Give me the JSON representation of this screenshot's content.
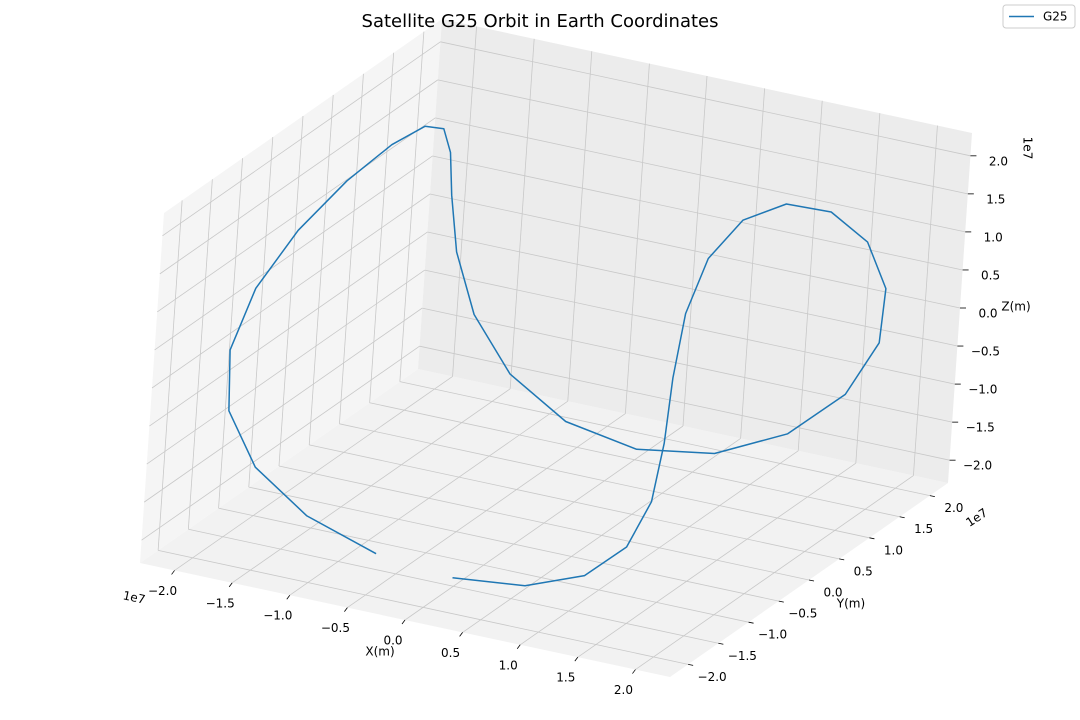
{
  "chart_data": {
    "type": "line3d",
    "title": "Satellite G25 Orbit in Earth Coordinates",
    "xlabel": "X(m)",
    "ylabel": "Y(m)",
    "zlabel": "Z(m)",
    "x_offset_label": "1e7",
    "y_offset_label": "1e7",
    "z_offset_label": "1e7",
    "legend_loc": "upper right",
    "grid": true,
    "xlim": [
      -2.3,
      2.3
    ],
    "ylim": [
      -2.3,
      2.3
    ],
    "zlim": [
      -2.3,
      2.3
    ],
    "xticks": [
      {
        "value": -2,
        "label": "−2.0"
      },
      {
        "value": -1.5,
        "label": "−1.5"
      },
      {
        "value": -1,
        "label": "−1.0"
      },
      {
        "value": -0.5,
        "label": "−0.5"
      },
      {
        "value": 0,
        "label": "0.0"
      },
      {
        "value": 0.5,
        "label": "0.5"
      },
      {
        "value": 1,
        "label": "1.0"
      },
      {
        "value": 1.5,
        "label": "1.5"
      },
      {
        "value": 2,
        "label": "2.0"
      }
    ],
    "yticks": [
      {
        "value": -2,
        "label": "−2.0"
      },
      {
        "value": -1.5,
        "label": "−1.5"
      },
      {
        "value": -1,
        "label": "−1.0"
      },
      {
        "value": -0.5,
        "label": "−0.5"
      },
      {
        "value": 0,
        "label": "0.0"
      },
      {
        "value": 0.5,
        "label": "0.5"
      },
      {
        "value": 1,
        "label": "1.0"
      },
      {
        "value": 1.5,
        "label": "1.5"
      },
      {
        "value": 2,
        "label": "2.0"
      }
    ],
    "zticks": [
      {
        "value": -2,
        "label": "−2.0"
      },
      {
        "value": -1.5,
        "label": "−1.5"
      },
      {
        "value": -1,
        "label": "−1.0"
      },
      {
        "value": -0.5,
        "label": "−0.5"
      },
      {
        "value": 0,
        "label": "0.0"
      },
      {
        "value": 0.5,
        "label": "0.5"
      },
      {
        "value": 1,
        "label": "1.0"
      },
      {
        "value": 1.5,
        "label": "1.5"
      },
      {
        "value": 2,
        "label": "2.0"
      }
    ],
    "series": [
      {
        "name": "G25",
        "color": "#1f77b4",
        "x": [
          0,
          0.646,
          1.205,
          1.611,
          1.834,
          1.884,
          1.81,
          1.681,
          1.568,
          1.524,
          1.568,
          1.681,
          1.81,
          1.884,
          1.834,
          1.611,
          1.205,
          0.646,
          0,
          -0.646,
          -1.205,
          -1.611,
          -1.834,
          -1.884,
          -1.81,
          -1.681,
          -1.568,
          -1.524,
          -1.568,
          -1.681,
          -1.81,
          -1.884,
          -1.834,
          -1.611,
          -1.205,
          -0.646
        ],
        "y": [
          -1.524,
          -1.568,
          -1.681,
          -1.81,
          -1.884,
          -1.834,
          -1.611,
          -1.205,
          -0.646,
          0,
          0.646,
          1.205,
          1.611,
          1.834,
          1.884,
          1.81,
          1.681,
          1.568,
          1.524,
          1.568,
          1.681,
          1.81,
          1.884,
          1.834,
          1.611,
          1.205,
          0.646,
          0,
          -0.646,
          -1.205,
          -1.611,
          -1.834,
          -1.884,
          -1.81,
          -1.681,
          -1.568
        ],
        "z": [
          -2.176,
          -2.045,
          -1.667,
          -1.088,
          -0.378,
          0.378,
          1.088,
          1.667,
          2.045,
          2.176,
          2.045,
          1.667,
          1.088,
          0.378,
          -0.378,
          -1.088,
          -1.667,
          -2.045,
          -2.176,
          -2.045,
          -1.667,
          -1.088,
          -0.378,
          0.378,
          1.088,
          1.667,
          2.045,
          2.176,
          2.045,
          1.667,
          1.088,
          0.378,
          -0.378,
          -1.088,
          -1.667,
          -2.045
        ]
      }
    ]
  }
}
